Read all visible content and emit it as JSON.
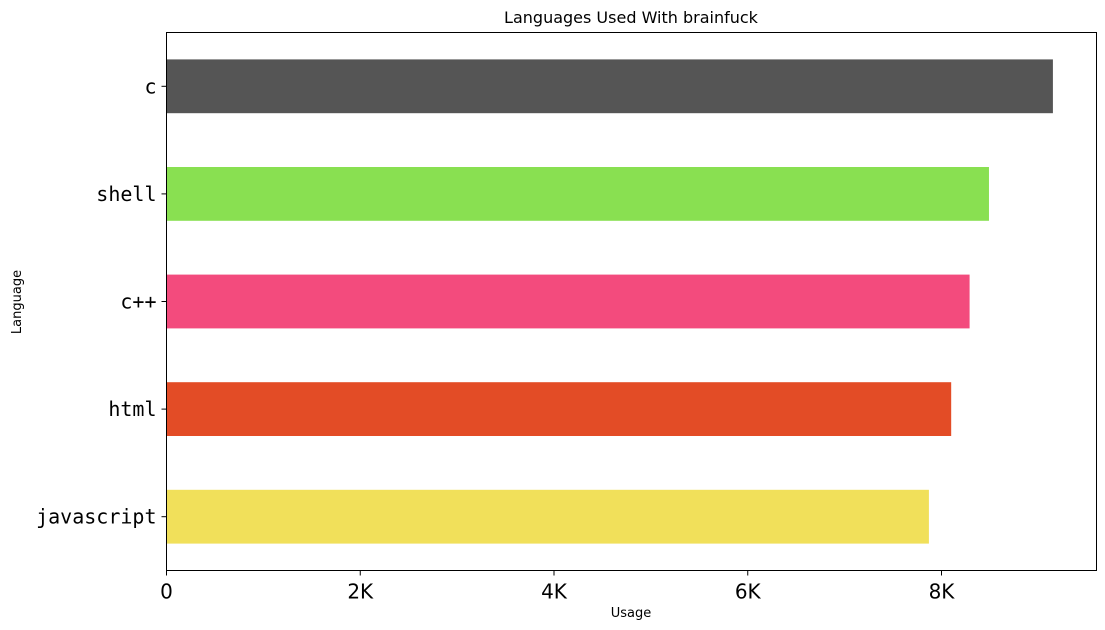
{
  "chart_data": {
    "type": "bar",
    "orientation": "horizontal",
    "title": "Languages Used With brainfuck",
    "xlabel": "Usage",
    "ylabel": "Language",
    "categories": [
      "c",
      "shell",
      "c++",
      "html",
      "javascript"
    ],
    "values": [
      9150,
      8490,
      8290,
      8100,
      7870
    ],
    "colors": [
      "#555555",
      "#89e051",
      "#f34b7d",
      "#e34c26",
      "#f1e05a"
    ],
    "xlim": [
      0,
      9600
    ],
    "xticks": [
      0,
      2000,
      4000,
      6000,
      8000
    ],
    "xtick_labels": [
      "0",
      "2K",
      "4K",
      "6K",
      "8K"
    ],
    "grid": false,
    "legend": "none"
  }
}
